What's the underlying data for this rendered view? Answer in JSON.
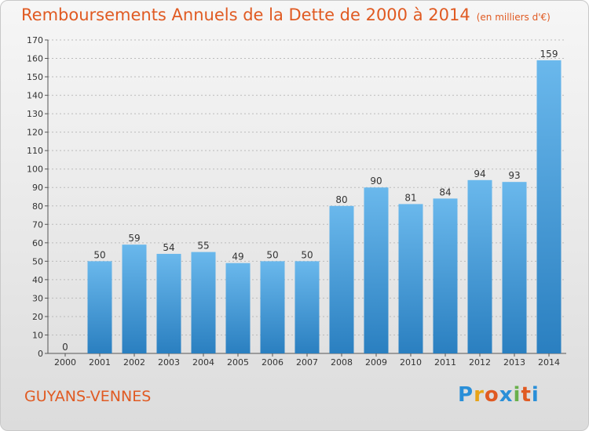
{
  "title": "Remboursements Annuels de la Dette de 2000 à 2014",
  "subtitle": "(en milliers d'€)",
  "commune": "GUYANS-VENNES",
  "logo": {
    "letters": [
      "P",
      "r",
      "o",
      "x",
      "i",
      "t",
      "i"
    ],
    "colors": [
      "#2a8fd8",
      "#e8a317",
      "#e05a22",
      "#2a8fd8",
      "#6ab04c",
      "#e05a22",
      "#2a8fd8"
    ]
  },
  "colors": {
    "title": "#e05a22",
    "bar_light": "#6ab8ec",
    "bar_dark": "#2a7fc0"
  },
  "chart_data": {
    "type": "bar",
    "categories": [
      "2000",
      "2001",
      "2002",
      "2003",
      "2004",
      "2005",
      "2006",
      "2007",
      "2008",
      "2009",
      "2010",
      "2011",
      "2012",
      "2013",
      "2014"
    ],
    "values": [
      0,
      50,
      59,
      54,
      55,
      49,
      50,
      50,
      80,
      90,
      81,
      84,
      94,
      93,
      159
    ],
    "ylim": [
      0,
      170
    ],
    "yticks": [
      0,
      10,
      20,
      30,
      40,
      50,
      60,
      70,
      80,
      90,
      100,
      110,
      120,
      130,
      140,
      150,
      160,
      170
    ],
    "grid": true
  }
}
